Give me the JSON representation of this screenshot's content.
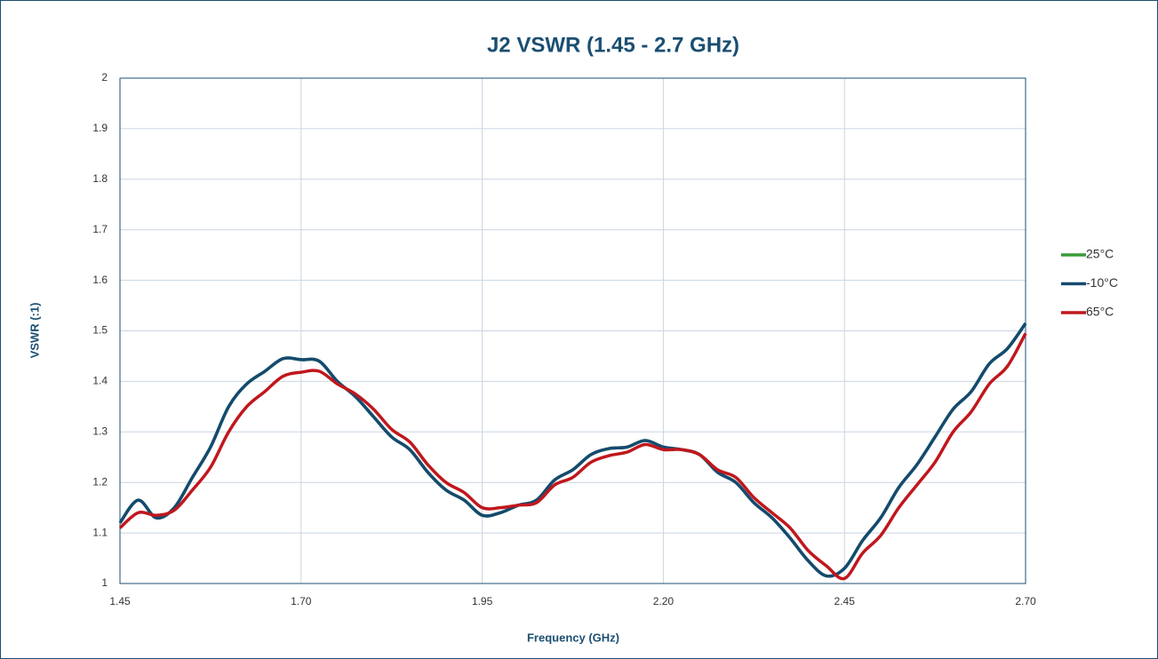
{
  "chart_data": {
    "type": "line",
    "title": "J2 VSWR (1.45 - 2.7 GHz)",
    "x_label": "Frequency (GHz)",
    "y_label": "VSWR (:1)",
    "x": [
      1.45,
      1.475,
      1.5,
      1.525,
      1.55,
      1.575,
      1.6,
      1.625,
      1.65,
      1.675,
      1.7,
      1.725,
      1.75,
      1.775,
      1.8,
      1.825,
      1.85,
      1.875,
      1.9,
      1.925,
      1.95,
      1.975,
      2.0,
      2.025,
      2.05,
      2.075,
      2.1,
      2.125,
      2.15,
      2.175,
      2.2,
      2.225,
      2.25,
      2.275,
      2.3,
      2.325,
      2.35,
      2.375,
      2.4,
      2.425,
      2.45,
      2.475,
      2.5,
      2.525,
      2.55,
      2.575,
      2.6,
      2.625,
      2.65,
      2.675,
      2.7
    ],
    "series": [
      {
        "name": "25°C",
        "color": "#3a9b35",
        "values": [
          1.12,
          1.165,
          1.13,
          1.15,
          1.21,
          1.27,
          1.35,
          1.395,
          1.42,
          1.445,
          1.443,
          1.44,
          1.4,
          1.37,
          1.33,
          1.29,
          1.265,
          1.22,
          1.185,
          1.165,
          1.135,
          1.14,
          1.155,
          1.165,
          1.205,
          1.225,
          1.255,
          1.267,
          1.27,
          1.283,
          1.27,
          1.265,
          1.255,
          1.22,
          1.2,
          1.16,
          1.13,
          1.09,
          1.045,
          1.015,
          1.03,
          1.085,
          1.13,
          1.19,
          1.235,
          1.29,
          1.345,
          1.38,
          1.435,
          1.465,
          1.515
        ]
      },
      {
        "name": "-10°C",
        "color": "#154a70",
        "values": [
          1.12,
          1.165,
          1.13,
          1.15,
          1.21,
          1.27,
          1.35,
          1.395,
          1.42,
          1.445,
          1.443,
          1.44,
          1.4,
          1.37,
          1.33,
          1.29,
          1.265,
          1.22,
          1.185,
          1.165,
          1.135,
          1.14,
          1.155,
          1.165,
          1.205,
          1.225,
          1.255,
          1.267,
          1.27,
          1.283,
          1.27,
          1.265,
          1.255,
          1.22,
          1.2,
          1.16,
          1.13,
          1.09,
          1.045,
          1.015,
          1.03,
          1.085,
          1.13,
          1.19,
          1.235,
          1.29,
          1.345,
          1.38,
          1.435,
          1.465,
          1.515
        ]
      },
      {
        "name": "65°C",
        "color": "#c0171d",
        "values": [
          1.11,
          1.14,
          1.135,
          1.145,
          1.185,
          1.23,
          1.3,
          1.35,
          1.38,
          1.41,
          1.418,
          1.42,
          1.395,
          1.375,
          1.345,
          1.305,
          1.28,
          1.235,
          1.2,
          1.18,
          1.15,
          1.15,
          1.155,
          1.16,
          1.195,
          1.21,
          1.24,
          1.253,
          1.26,
          1.275,
          1.265,
          1.265,
          1.255,
          1.225,
          1.21,
          1.17,
          1.14,
          1.11,
          1.065,
          1.035,
          1.01,
          1.06,
          1.095,
          1.15,
          1.195,
          1.24,
          1.3,
          1.34,
          1.395,
          1.43,
          1.495
        ]
      }
    ],
    "xlim": [
      1.45,
      2.7
    ],
    "xticks": [
      1.45,
      {
        "value": 1.7,
        "label": "1.70"
      },
      1.95,
      {
        "value": 2.2,
        "label": "2.20"
      },
      2.45,
      {
        "value": 2.7,
        "label": "2.70"
      }
    ],
    "ylim": [
      1,
      2
    ],
    "yticks": [
      1,
      1.1,
      1.2,
      1.3,
      1.4,
      1.5,
      1.6,
      1.7,
      1.8,
      1.9,
      2
    ],
    "grid": true,
    "legend": "right"
  }
}
